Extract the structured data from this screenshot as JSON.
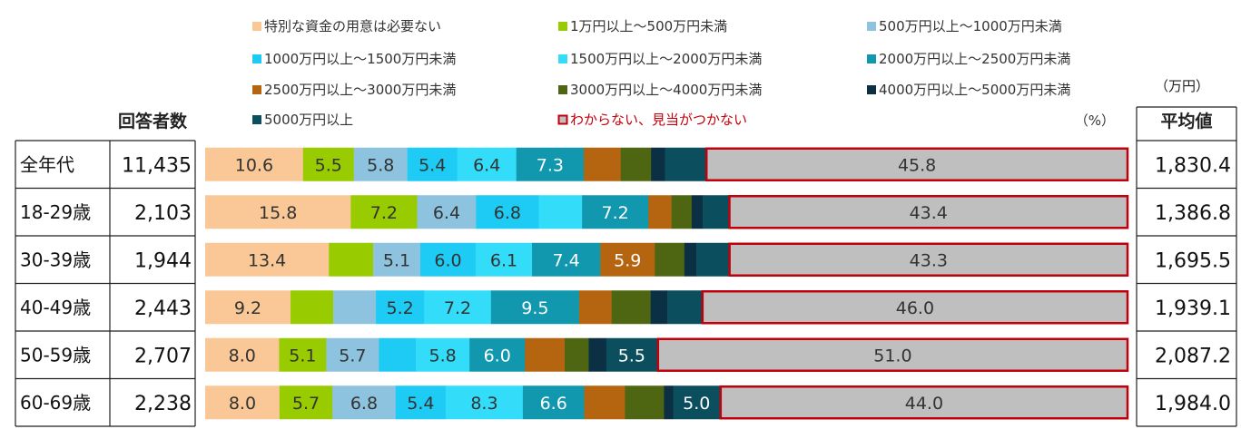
{
  "chart_data": {
    "type": "bar",
    "orientation": "horizontal",
    "stacked": true,
    "unit_label": "（%）",
    "header_count": "回答者数",
    "header_avg": "平均値",
    "header_avg_unit": "（万円）",
    "legend": [
      {
        "name": "特別な資金の用意は必要ない",
        "color": "#FAC896"
      },
      {
        "name": "1万円以上～500万円未満",
        "color": "#99CC00"
      },
      {
        "name": "500万円以上～1000万円未満",
        "color": "#8EC3DF"
      },
      {
        "name": "1000万円以上～1500万円未満",
        "color": "#1ECBF5"
      },
      {
        "name": "1500万円以上～2000万円未満",
        "color": "#33DDFA"
      },
      {
        "name": "2000万円以上～2500万円未満",
        "color": "#1198AF"
      },
      {
        "name": "2500万円以上～3000万円未満",
        "color": "#B5650F"
      },
      {
        "name": "3000万円以上～4000万円未満",
        "color": "#4E6612"
      },
      {
        "name": "4000万円以上～5000万円未満",
        "color": "#0B3043"
      },
      {
        "name": "5000万円以上",
        "color": "#0B4F5F"
      },
      {
        "name": "わからない、見当がつかない",
        "color": "#BFBFBF",
        "border": "#C0000B",
        "text_color": "#C0000B"
      }
    ],
    "rows": [
      {
        "label": "全年代",
        "count": "11,435",
        "avg": "1,830.4",
        "values": [
          10.6,
          5.5,
          5.8,
          5.4,
          6.4,
          7.3,
          4.0,
          3.3,
          1.5,
          4.4,
          45.8
        ],
        "labels": [
          "10.6",
          "5.5",
          "5.8",
          "5.4",
          "6.4",
          "7.3",
          "",
          "",
          "",
          "",
          "45.8"
        ]
      },
      {
        "label": "18-29歳",
        "count": "2,103",
        "avg": "1,386.8",
        "values": [
          15.8,
          7.2,
          6.4,
          6.8,
          4.7,
          7.2,
          2.5,
          2.2,
          1.2,
          2.8,
          43.4
        ],
        "labels": [
          "15.8",
          "7.2",
          "6.4",
          "6.8",
          "",
          "7.2",
          "",
          "",
          "",
          "",
          "43.4"
        ]
      },
      {
        "label": "30-39歳",
        "count": "1,944",
        "avg": "1,695.5",
        "values": [
          13.4,
          4.8,
          5.1,
          6.0,
          6.1,
          7.4,
          5.9,
          3.2,
          1.3,
          3.5,
          43.3
        ],
        "labels": [
          "13.4",
          "",
          "5.1",
          "6.0",
          "6.1",
          "7.4",
          "5.9",
          "",
          "",
          "",
          "43.3"
        ]
      },
      {
        "label": "40-49歳",
        "count": "2,443",
        "avg": "1,939.1",
        "values": [
          9.2,
          4.6,
          4.6,
          5.2,
          7.2,
          9.5,
          3.5,
          4.2,
          1.8,
          3.7,
          46.0
        ],
        "labels": [
          "9.2",
          "",
          "",
          "5.2",
          "7.2",
          "9.5",
          "",
          "",
          "",
          "",
          "46.0"
        ]
      },
      {
        "label": "50-59歳",
        "count": "2,707",
        "avg": "2,087.2",
        "values": [
          8.0,
          5.1,
          5.7,
          4.0,
          5.8,
          6.0,
          4.3,
          2.6,
          1.9,
          5.5,
          51.0
        ],
        "labels": [
          "8.0",
          "5.1",
          "5.7",
          "",
          "5.8",
          "6.0",
          "",
          "",
          "",
          "5.5",
          "51.0"
        ]
      },
      {
        "label": "60-69歳",
        "count": "2,238",
        "avg": "1,984.0",
        "values": [
          8.0,
          5.7,
          6.8,
          5.4,
          8.3,
          6.6,
          4.4,
          4.2,
          1.0,
          5.0,
          44.0
        ],
        "labels": [
          "8.0",
          "5.7",
          "6.8",
          "5.4",
          "8.3",
          "6.6",
          "",
          "",
          "",
          "5.0",
          "44.0"
        ]
      }
    ]
  }
}
